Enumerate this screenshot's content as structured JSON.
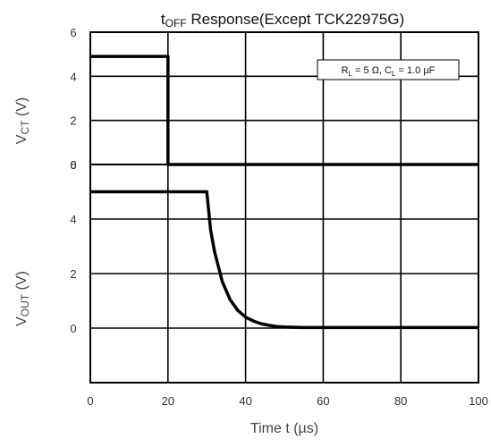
{
  "chart_data": {
    "type": "line",
    "title": {
      "prefix": "t",
      "sub": "OFF",
      "rest": " Response(Except TCK22975G)"
    },
    "xlabel": "Time  t (µs)",
    "xlim": [
      0,
      100
    ],
    "x_ticks": [
      "0",
      "20",
      "40",
      "60",
      "80",
      "100"
    ],
    "grid": true,
    "annotation": {
      "r": "R",
      "r_sub": "L",
      "r_val": " = 5 Ω, C",
      "c_sub": "L",
      "c_val": " = 1.0 µF"
    },
    "panels": [
      {
        "name": "vct",
        "ylabel": {
          "base": "V",
          "sub": "CT",
          "unit": " (V)"
        },
        "ylim": [
          0,
          6
        ],
        "y_ticks": [
          "0",
          "2",
          "4",
          "6"
        ],
        "series": [
          {
            "x": [
              0,
              20,
              20,
              100
            ],
            "y": [
              4.9,
              4.9,
              0,
              0
            ]
          }
        ]
      },
      {
        "name": "vout",
        "ylabel": {
          "base": "V",
          "sub": "OUT",
          "unit": " (V)"
        },
        "ylim": [
          -2,
          6
        ],
        "y_ticks": [
          "0",
          "2",
          "4",
          "6"
        ],
        "series": [
          {
            "x": [
              0,
              30,
              31,
              32,
              34,
              36,
              38,
              40,
              42,
              44,
              46,
              48,
              50,
              55,
              100
            ],
            "y": [
              5.0,
              5.0,
              3.6,
              2.8,
              1.7,
              1.05,
              0.65,
              0.4,
              0.26,
              0.16,
              0.1,
              0.06,
              0.04,
              0.02,
              0.02
            ]
          }
        ]
      }
    ]
  }
}
